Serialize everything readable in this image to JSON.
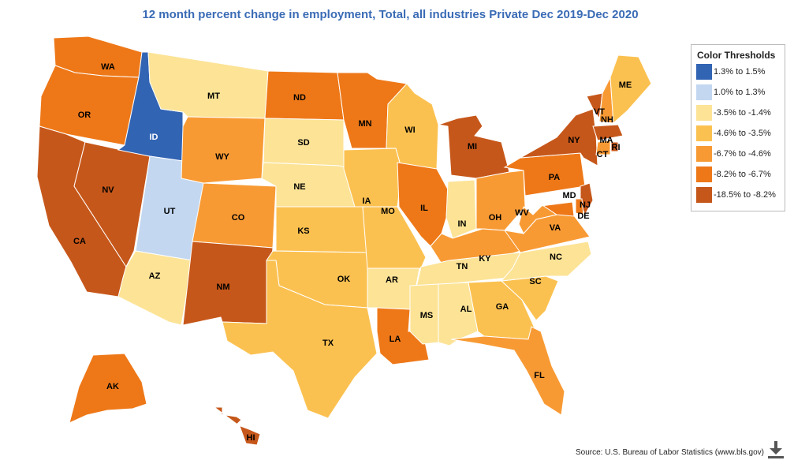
{
  "title": "12 month percent change in employment, Total, all industries Private Dec 2019-Dec 2020",
  "legend": {
    "title": "Color Thresholds",
    "items": [
      {
        "label": "1.3% to 1.5%",
        "color": "#3264b4"
      },
      {
        "label": "1.0% to 1.3%",
        "color": "#c3d7f0"
      },
      {
        "label": "-3.5% to -1.4%",
        "color": "#fce396"
      },
      {
        "label": "-4.6% to -3.5%",
        "color": "#fbc150"
      },
      {
        "label": "-6.7% to -4.6%",
        "color": "#f89a34"
      },
      {
        "label": "-8.2% to -6.7%",
        "color": "#ee7818"
      },
      {
        "label": "-18.5% to -8.2%",
        "color": "#c6571a"
      }
    ]
  },
  "states": [
    {
      "abbr": "WA",
      "tier": 5
    },
    {
      "abbr": "OR",
      "tier": 5
    },
    {
      "abbr": "CA",
      "tier": 6
    },
    {
      "abbr": "NV",
      "tier": 6
    },
    {
      "abbr": "ID",
      "tier": 0
    },
    {
      "abbr": "UT",
      "tier": 1
    },
    {
      "abbr": "AZ",
      "tier": 2
    },
    {
      "abbr": "MT",
      "tier": 2
    },
    {
      "abbr": "WY",
      "tier": 4
    },
    {
      "abbr": "CO",
      "tier": 4
    },
    {
      "abbr": "NM",
      "tier": 6
    },
    {
      "abbr": "ND",
      "tier": 5
    },
    {
      "abbr": "SD",
      "tier": 2
    },
    {
      "abbr": "NE",
      "tier": 2
    },
    {
      "abbr": "KS",
      "tier": 3
    },
    {
      "abbr": "OK",
      "tier": 3
    },
    {
      "abbr": "TX",
      "tier": 3
    },
    {
      "abbr": "MN",
      "tier": 5
    },
    {
      "abbr": "IA",
      "tier": 3
    },
    {
      "abbr": "MO",
      "tier": 3
    },
    {
      "abbr": "AR",
      "tier": 2
    },
    {
      "abbr": "LA",
      "tier": 5
    },
    {
      "abbr": "WI",
      "tier": 3
    },
    {
      "abbr": "IL",
      "tier": 5
    },
    {
      "abbr": "MI",
      "tier": 6
    },
    {
      "abbr": "IN",
      "tier": 2
    },
    {
      "abbr": "OH",
      "tier": 4
    },
    {
      "abbr": "KY",
      "tier": 4
    },
    {
      "abbr": "TN",
      "tier": 2
    },
    {
      "abbr": "MS",
      "tier": 2
    },
    {
      "abbr": "AL",
      "tier": 2
    },
    {
      "abbr": "GA",
      "tier": 3
    },
    {
      "abbr": "FL",
      "tier": 4
    },
    {
      "abbr": "SC",
      "tier": 3
    },
    {
      "abbr": "NC",
      "tier": 2
    },
    {
      "abbr": "VA",
      "tier": 4
    },
    {
      "abbr": "WV",
      "tier": 4
    },
    {
      "abbr": "PA",
      "tier": 5
    },
    {
      "abbr": "NY",
      "tier": 6
    },
    {
      "abbr": "VT",
      "tier": 6
    },
    {
      "abbr": "NH",
      "tier": 4
    },
    {
      "abbr": "ME",
      "tier": 3
    },
    {
      "abbr": "MA",
      "tier": 6
    },
    {
      "abbr": "CT",
      "tier": 4
    },
    {
      "abbr": "RI",
      "tier": 6
    },
    {
      "abbr": "NJ",
      "tier": 6
    },
    {
      "abbr": "MD",
      "tier": 5
    },
    {
      "abbr": "DE",
      "tier": 5
    },
    {
      "abbr": "AK",
      "tier": 5
    },
    {
      "abbr": "HI",
      "tier": 6
    }
  ],
  "source": "Source: U.S. Bureau of Labor Statistics (www.bls.gov)",
  "download_icon": "download-icon"
}
